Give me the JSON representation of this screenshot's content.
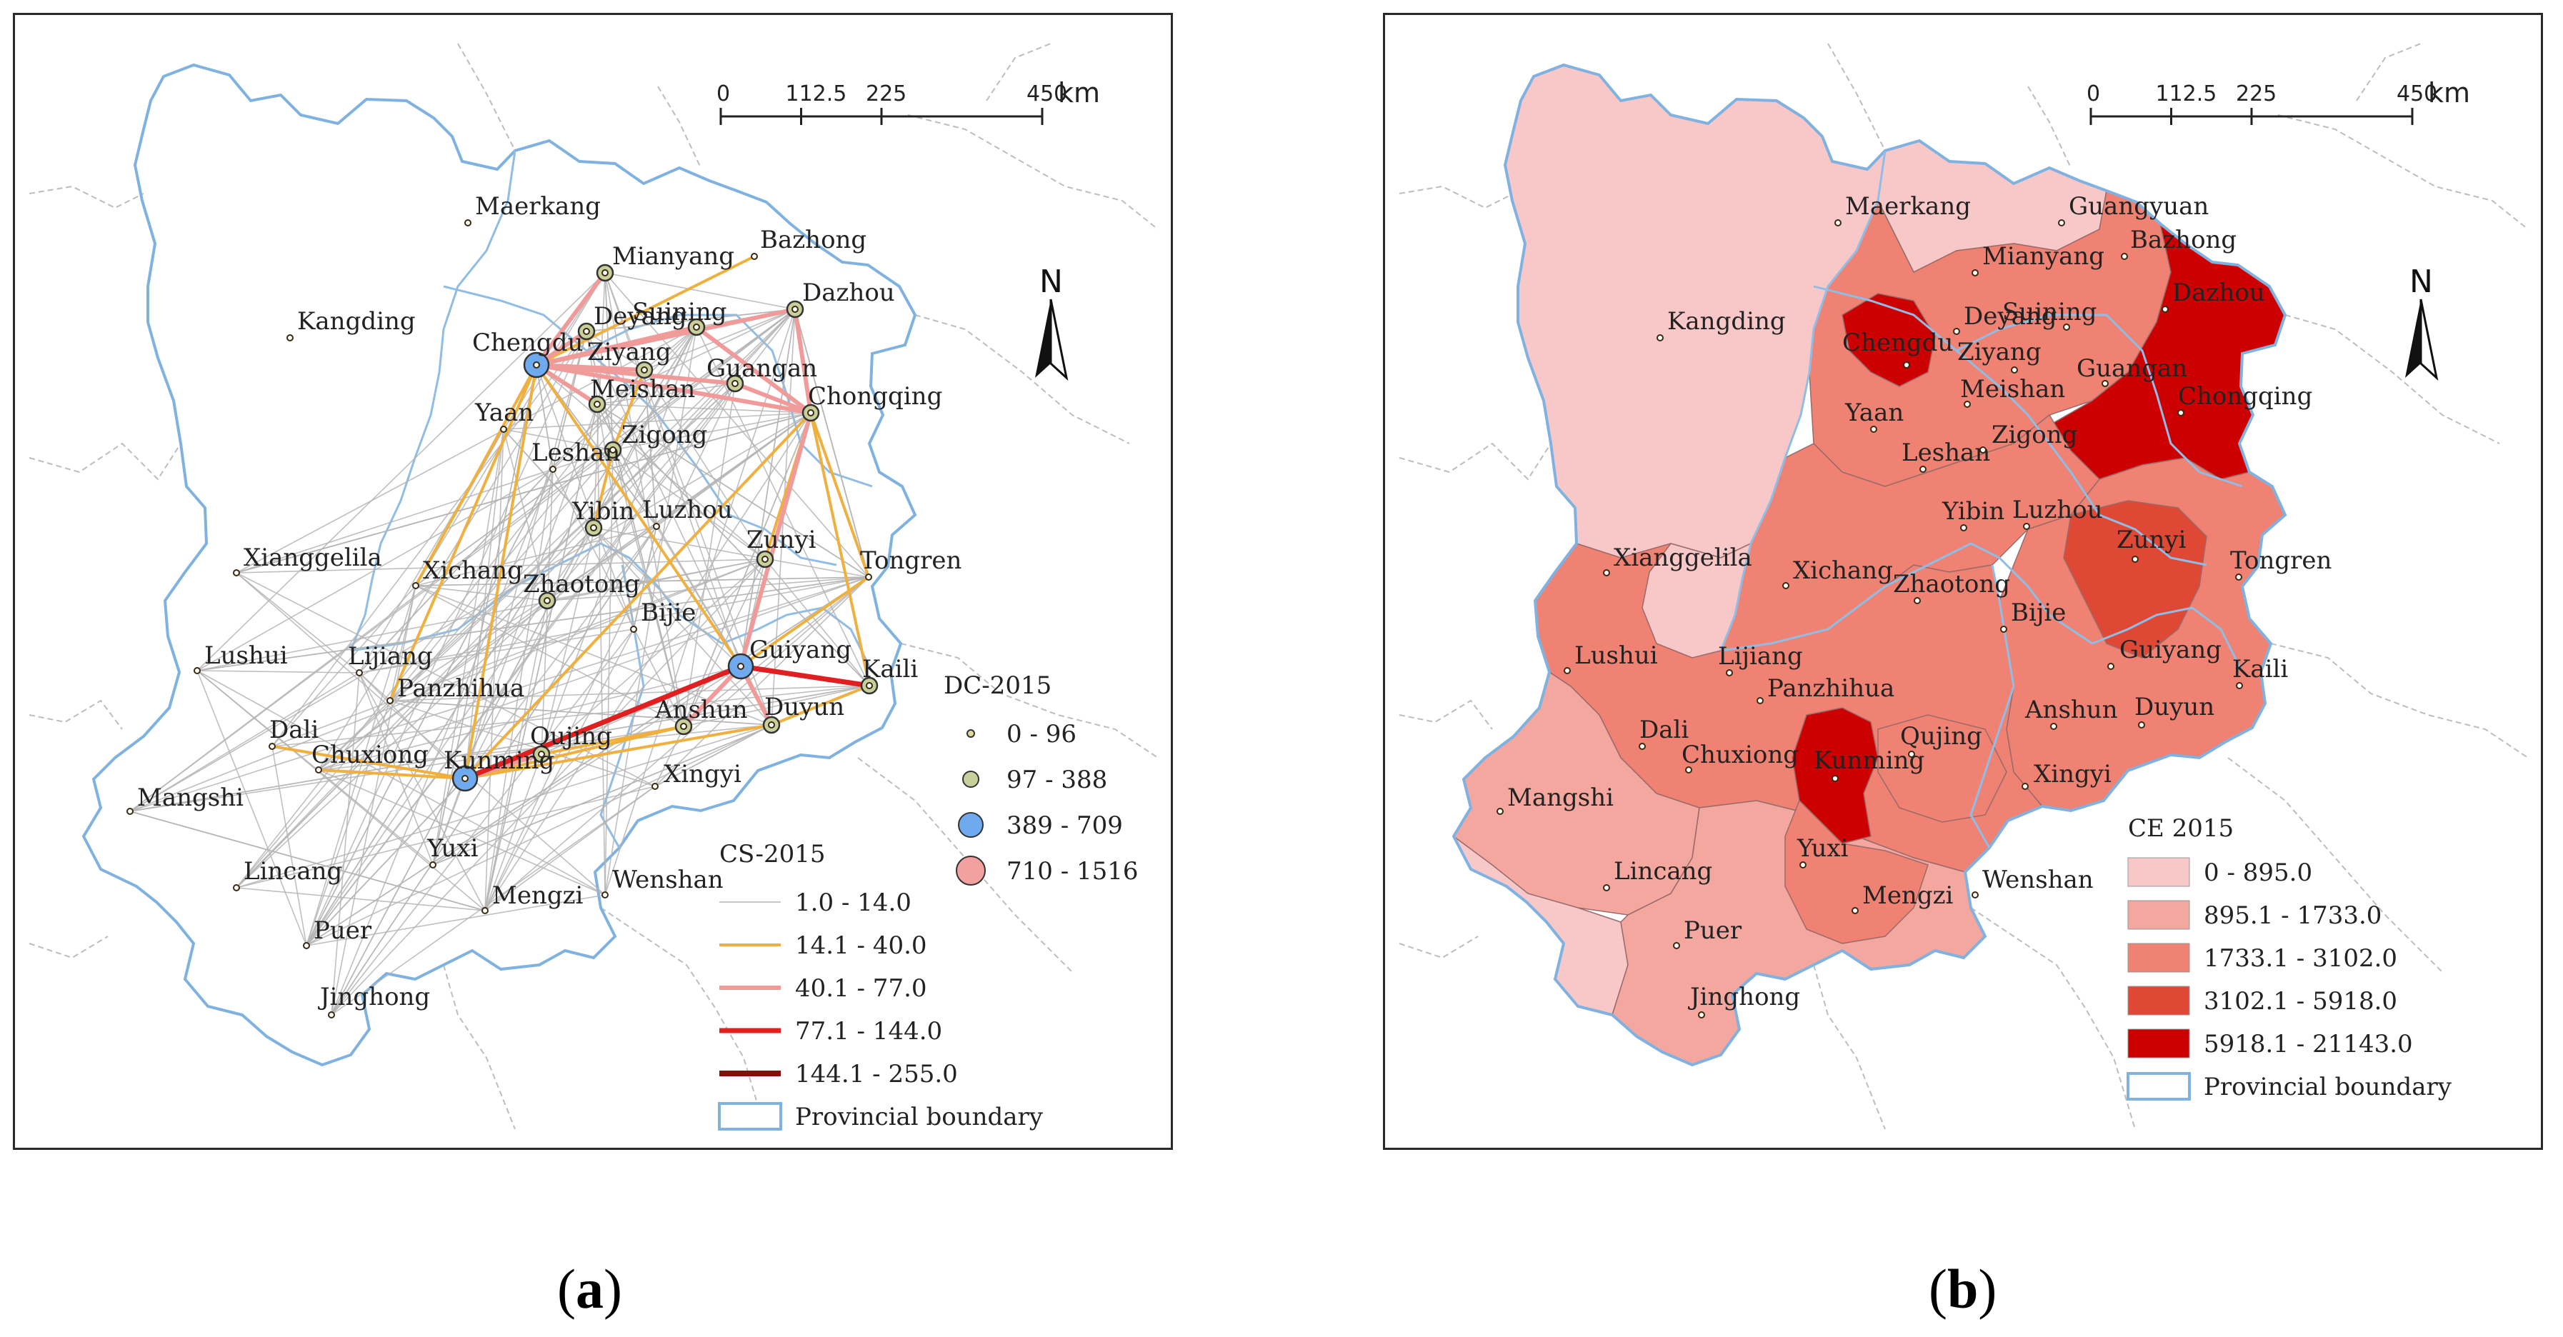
{
  "figure_a": {
    "caption_letter": "a",
    "scale_bar": {
      "ticks": [
        "0",
        "112.5",
        "225",
        "450"
      ],
      "unit": "km"
    },
    "north_label": "N",
    "dc_legend": {
      "title": "DC-2015",
      "classes": [
        {
          "label": "0 - 96",
          "color": "#e0d8a0"
        },
        {
          "label": "97 - 388",
          "color": "#c9cf9b"
        },
        {
          "label": "389 - 709",
          "color": "#6fa9ee"
        },
        {
          "label": "710 - 1516",
          "color": "#f2a0a0"
        }
      ]
    },
    "cs_legend": {
      "title": "CS-2015",
      "classes": [
        {
          "label": "1.0 - 14.0",
          "color": "#b5b5b5"
        },
        {
          "label": "14.1 - 40.0",
          "color": "#f0b040"
        },
        {
          "label": "40.1 - 77.0",
          "color": "#f19a9a"
        },
        {
          "label": "77.1 - 144.0",
          "color": "#e02020"
        },
        {
          "label": "144.1 - 255.0",
          "color": "#8b0a0a"
        },
        {
          "label": "Provincial boundary",
          "color": "#7fb2e0"
        }
      ]
    }
  },
  "figure_b": {
    "caption_letter": "b",
    "scale_bar": {
      "ticks": [
        "0",
        "112.5",
        "225",
        "450"
      ],
      "unit": "km"
    },
    "north_label": "N",
    "ce_legend": {
      "title": "CE 2015",
      "classes": [
        {
          "label": "0 - 895.0",
          "color": "#f8c8c8"
        },
        {
          "label": "895.1 - 1733.0",
          "color": "#f3a79f"
        },
        {
          "label": "1733.1 - 3102.0",
          "color": "#ef8272"
        },
        {
          "label": "3102.1 - 5918.0",
          "color": "#e04836"
        },
        {
          "label": "5918.1 - 21143.0",
          "color": "#cc0000"
        },
        {
          "label": "Provincial boundary",
          "color": "#7fb2e0"
        }
      ]
    }
  },
  "cities": [
    {
      "name": "Maerkang"
    },
    {
      "name": "Mianyang"
    },
    {
      "name": "Bazhong"
    },
    {
      "name": "Dazhou"
    },
    {
      "name": "Kangding"
    },
    {
      "name": "Chengdu"
    },
    {
      "name": "Deyang"
    },
    {
      "name": "Suining"
    },
    {
      "name": "Guangan"
    },
    {
      "name": "Ziyang"
    },
    {
      "name": "Chongqing"
    },
    {
      "name": "Yaan"
    },
    {
      "name": "Meishan"
    },
    {
      "name": "Leshan"
    },
    {
      "name": "Zigong"
    },
    {
      "name": "Yibin"
    },
    {
      "name": "Luzhou"
    },
    {
      "name": "Zunyi"
    },
    {
      "name": "Tongren"
    },
    {
      "name": "Xianggelila"
    },
    {
      "name": "Xichang"
    },
    {
      "name": "Zhaotong"
    },
    {
      "name": "Lushui"
    },
    {
      "name": "Lijiang"
    },
    {
      "name": "Bijie"
    },
    {
      "name": "Guiyang"
    },
    {
      "name": "Panzhihua"
    },
    {
      "name": "Kaili"
    },
    {
      "name": "Dali"
    },
    {
      "name": "Anshun"
    },
    {
      "name": "Duyun"
    },
    {
      "name": "Kunming"
    },
    {
      "name": "Qujing"
    },
    {
      "name": "Chuxiong"
    },
    {
      "name": "Xingyi"
    },
    {
      "name": "Mangshi"
    },
    {
      "name": "Yuxi"
    },
    {
      "name": "Lincang"
    },
    {
      "name": "Mengzi"
    },
    {
      "name": "Wenshan"
    },
    {
      "name": "Puer"
    },
    {
      "name": "Jinghong"
    },
    {
      "name": "Guangyuan"
    }
  ],
  "links_a": [
    {
      "from": "Chengdu",
      "to": "Chongqing",
      "class": 2
    },
    {
      "from": "Chengdu",
      "to": "Mianyang",
      "class": 2
    },
    {
      "from": "Chengdu",
      "to": "Deyang",
      "class": 2
    },
    {
      "from": "Chengdu",
      "to": "Suining",
      "class": 2
    },
    {
      "from": "Chengdu",
      "to": "Dazhou",
      "class": 2
    },
    {
      "from": "Chengdu",
      "to": "Ziyang",
      "class": 2
    },
    {
      "from": "Chengdu",
      "to": "Meishan",
      "class": 2
    },
    {
      "from": "Chengdu",
      "to": "Guangan",
      "class": 2
    },
    {
      "from": "Chongqing",
      "to": "Dazhou",
      "class": 2
    },
    {
      "from": "Chongqing",
      "to": "Guangan",
      "class": 2
    },
    {
      "from": "Chongqing",
      "to": "Suining",
      "class": 2
    },
    {
      "from": "Chongqing",
      "to": "Guiyang",
      "class": 2
    },
    {
      "from": "Guiyang",
      "to": "Kaili",
      "class": 3
    },
    {
      "from": "Guiyang",
      "to": "Kunming",
      "class": 3
    },
    {
      "from": "Guiyang",
      "to": "Anshun",
      "class": 2
    },
    {
      "from": "Guiyang",
      "to": "Duyun",
      "class": 2
    },
    {
      "from": "Kunming",
      "to": "Qujing",
      "class": 2
    },
    {
      "from": "Kunming",
      "to": "Anshun",
      "class": 1
    },
    {
      "from": "Kunming",
      "to": "Duyun",
      "class": 1
    },
    {
      "from": "Kunming",
      "to": "Chuxiong",
      "class": 1
    },
    {
      "from": "Kunming",
      "to": "Dali",
      "class": 1
    },
    {
      "from": "Chengdu",
      "to": "Kunming",
      "class": 1
    },
    {
      "from": "Chengdu",
      "to": "Guiyang",
      "class": 1
    },
    {
      "from": "Chengdu",
      "to": "Xichang",
      "class": 1
    },
    {
      "from": "Chengdu",
      "to": "Panzhihua",
      "class": 1
    },
    {
      "from": "Chengdu",
      "to": "Bazhong",
      "class": 1
    },
    {
      "from": "Chongqing",
      "to": "Zunyi",
      "class": 1
    },
    {
      "from": "Chongqing",
      "to": "Tongren",
      "class": 1
    },
    {
      "from": "Chongqing",
      "to": "Kaili",
      "class": 1
    },
    {
      "from": "Chongqing",
      "to": "Kunming",
      "class": 1
    },
    {
      "from": "Zigong",
      "to": "Yibin",
      "class": 1
    },
    {
      "from": "Zigong",
      "to": "Ziyang",
      "class": 1
    },
    {
      "from": "Tongren",
      "to": "Guiyang",
      "class": 1
    },
    {
      "from": "Kaili",
      "to": "Duyun",
      "class": 1
    },
    {
      "from": "Qujing",
      "to": "Anshun",
      "class": 1
    }
  ],
  "grey_links_seed": 17
}
